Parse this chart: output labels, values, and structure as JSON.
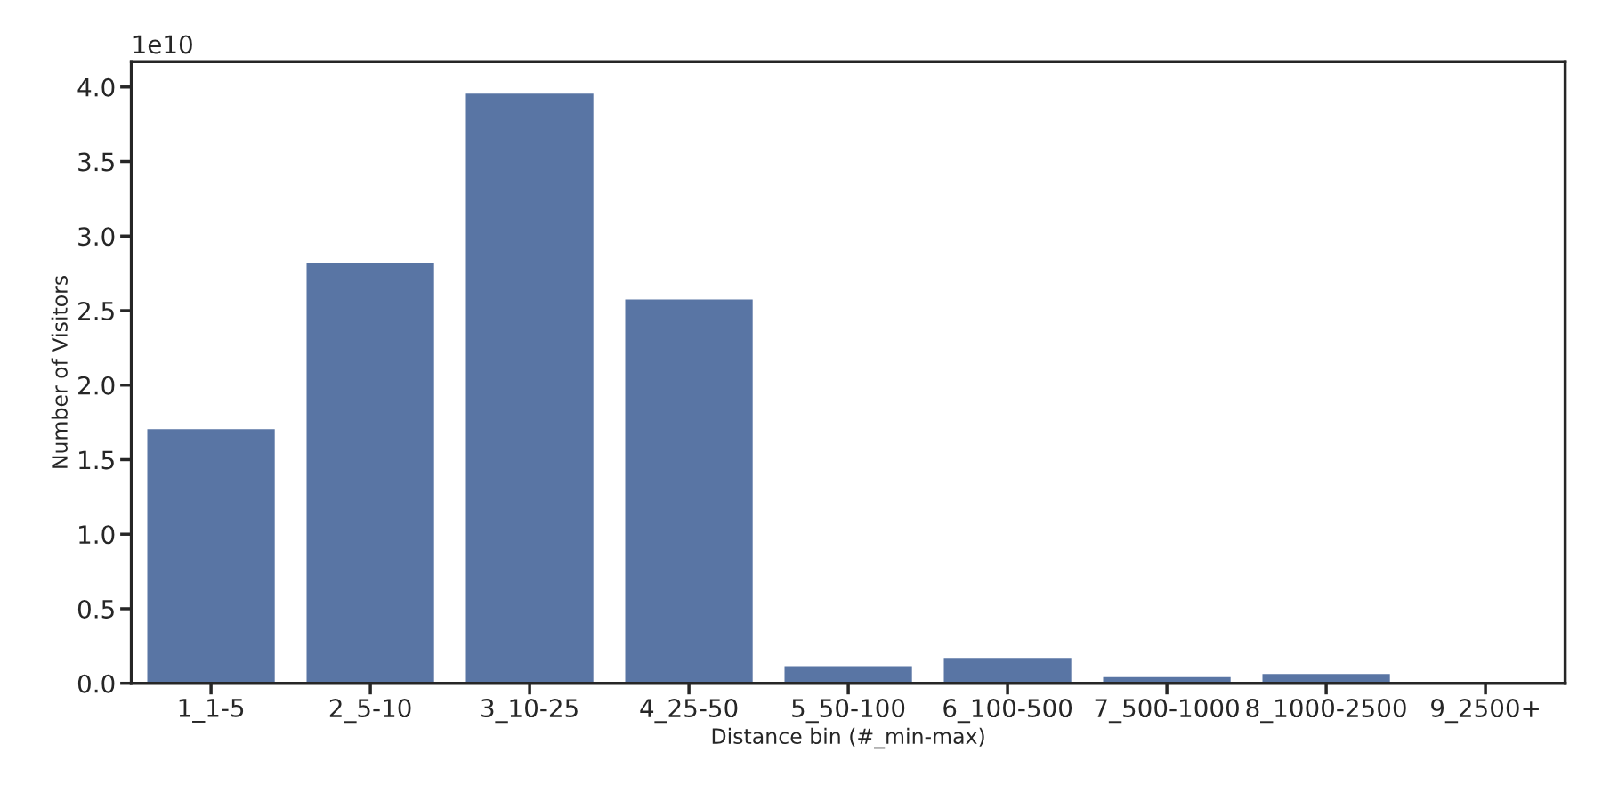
{
  "chart_data": {
    "type": "bar",
    "xlabel": "Distance bin (#_min-max)",
    "ylabel": "Number of Visitors",
    "categories": [
      "1_1-5",
      "2_5-10",
      "3_10-25",
      "4_25-50",
      "5_50-100",
      "6_100-500",
      "7_500-1000",
      "8_1000-2500",
      "9_2500+"
    ],
    "values": [
      1.705,
      2.82,
      3.955,
      2.575,
      0.115,
      0.17,
      0.041,
      0.062,
      0
    ],
    "color": "#5975a4",
    "ylim": [
      0,
      4.17
    ],
    "yticks": [
      {
        "value": 0,
        "label": "0.0"
      },
      0.5,
      {
        "value": 1,
        "label": "1.0"
      },
      1.5,
      {
        "value": 2,
        "label": "2.0"
      },
      2.5,
      {
        "value": 3,
        "label": "3.0"
      },
      3.5,
      {
        "value": 4,
        "label": "4.0"
      }
    ],
    "annotations": [
      "1e10"
    ],
    "grid": false
  }
}
